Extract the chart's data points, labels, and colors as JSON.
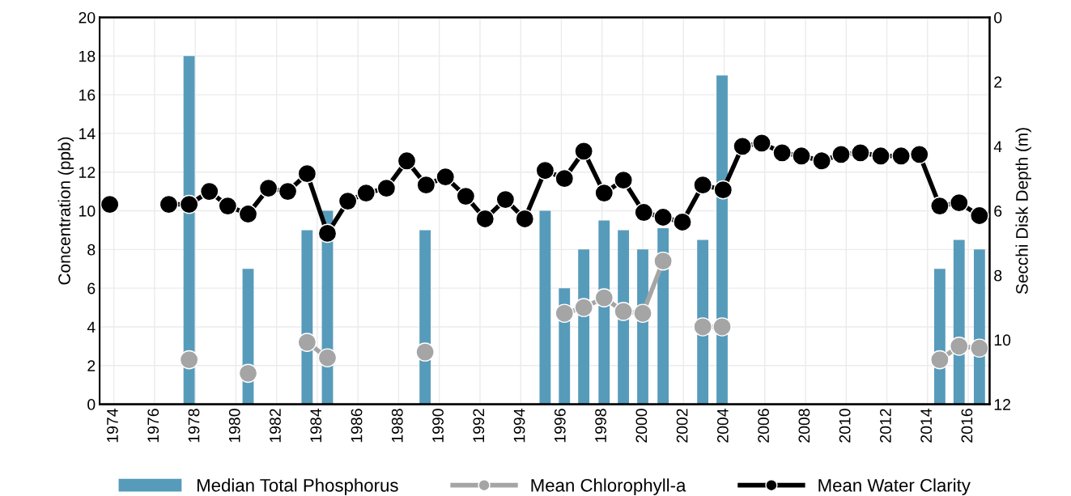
{
  "chart_data": {
    "type": "bar",
    "ylabel": "Concentration (ppb)",
    "y2label": "Secchi Disk Depth (m)",
    "xlim": [
      1973.3,
      2017.05
    ],
    "xticks": [
      1974,
      1976,
      1978,
      1980,
      1982,
      1984,
      1986,
      1988,
      1990,
      1992,
      1994,
      1996,
      1998,
      2000,
      2002,
      2004,
      2006,
      2008,
      2010,
      2012,
      2014,
      2016
    ],
    "ylim": [
      0,
      20
    ],
    "yticks": [
      0,
      2,
      4,
      6,
      8,
      10,
      12,
      14,
      16,
      18,
      20
    ],
    "y2lim": [
      12,
      0
    ],
    "y2ticks": [
      0,
      2,
      4,
      6,
      8,
      10,
      12
    ],
    "grid": true,
    "legend": "bottom",
    "series": [
      {
        "name": "Median Total Phosphorus",
        "color": "#579bbb",
        "x": [
          1977.7,
          1980.6,
          1983.5,
          1984.5,
          1989.3,
          1995.2,
          1996.15,
          1997.1,
          1998.1,
          1999.05,
          2000.0,
          2001.0,
          2002.95,
          2003.9,
          2014.6,
          2015.55,
          2016.55
        ],
        "values": [
          18,
          7,
          9,
          10,
          9,
          10,
          6,
          8,
          9.5,
          9,
          8,
          9.1,
          8.5,
          17,
          7,
          8.5,
          8
        ]
      },
      {
        "name": "Mean Chlorophyll-a",
        "type": "line",
        "color": "#a5a5a5",
        "marker": "circle",
        "x": [
          1977.7,
          1979,
          1980.6,
          1982,
          1983.5,
          1984.5,
          1987,
          1989.3,
          1992,
          1996.15,
          1997.1,
          1998.1,
          1999.05,
          2000.0,
          2001.0,
          2002,
          2002.95,
          2003.9,
          2010,
          2014.6,
          2015.55,
          2016.55
        ],
        "values": [
          2.3,
          null,
          1.6,
          null,
          3.2,
          2.4,
          null,
          2.7,
          null,
          4.7,
          5.0,
          5.5,
          4.8,
          4.7,
          7.4,
          null,
          4.0,
          4.0,
          null,
          2.3,
          3.0,
          2.9
        ]
      },
      {
        "name": "Mean Water Clarity",
        "type": "line",
        "axis": "y2",
        "color": "#000000",
        "marker": "circle",
        "x": [
          1973.8,
          1975,
          1976.7,
          1977.7,
          1978.7,
          1979.6,
          1980.6,
          1981.6,
          1982.55,
          1983.5,
          1984.5,
          1985.5,
          1986.4,
          1987.4,
          1988.4,
          1989.35,
          1990.3,
          1991.3,
          1992.25,
          1993.25,
          1994.2,
          1995.2,
          1996.15,
          1997.1,
          1998.1,
          1999.05,
          2000.05,
          2001.0,
          2001.95,
          2002.95,
          2003.95,
          2004.9,
          2005.85,
          2006.85,
          2007.8,
          2008.8,
          2009.75,
          2010.7,
          2011.7,
          2012.7,
          2013.6,
          2014.6,
          2015.55,
          2016.55
        ],
        "values": [
          5.8,
          null,
          5.8,
          5.8,
          5.4,
          5.85,
          6.1,
          5.3,
          5.4,
          4.85,
          6.7,
          5.7,
          5.45,
          5.3,
          4.45,
          5.2,
          4.95,
          5.55,
          6.25,
          5.65,
          6.25,
          4.75,
          5.0,
          4.15,
          5.45,
          5.05,
          6.05,
          6.2,
          6.35,
          5.2,
          5.35,
          4.0,
          3.9,
          4.2,
          4.3,
          4.45,
          4.25,
          4.2,
          4.3,
          4.3,
          4.25,
          5.85,
          5.75,
          6.15
        ]
      }
    ]
  }
}
